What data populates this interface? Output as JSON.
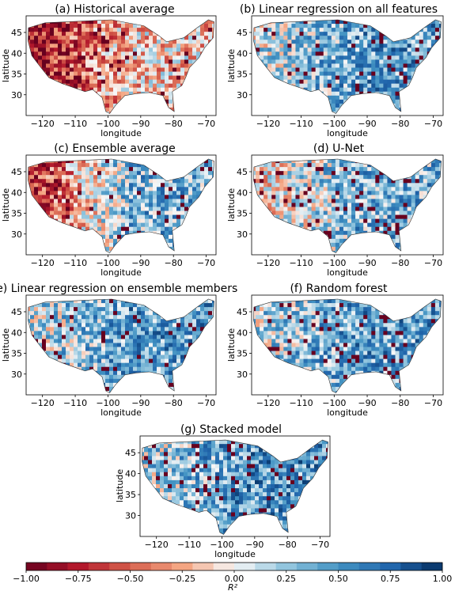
{
  "figure": {
    "colorbar": {
      "label": "R²",
      "ticks": [
        "−1.00",
        "−0.75",
        "−0.50",
        "−0.25",
        "0.00",
        "0.25",
        "0.50",
        "0.75",
        "1.00"
      ],
      "range": [
        -1,
        1
      ],
      "colormap": "RdBu",
      "negative_color": "#67001f",
      "neutral_color": "#f7f7f7",
      "positive_color": "#053061"
    }
  },
  "chart_data": [
    {
      "type": "heatmap",
      "title": "(a) Historical average",
      "xlabel": "longitude",
      "ylabel": "latitude",
      "xticks": [
        "−120",
        "−110",
        "−100",
        "−90",
        "−80",
        "−70"
      ],
      "yticks": [
        "30",
        "35",
        "40",
        "45"
      ],
      "xlim": [
        -125,
        -67
      ],
      "ylim": [
        25,
        49
      ],
      "mean_r2_west": -0.85,
      "mean_r2_east": -0.15
    },
    {
      "type": "heatmap",
      "title": "(b) Linear regression on all features",
      "xlabel": "longitude",
      "ylabel": "latitude",
      "xticks": [
        "−120",
        "−110",
        "−100",
        "−90",
        "−80",
        "−70"
      ],
      "yticks": [
        "30",
        "35",
        "40",
        "45"
      ],
      "xlim": [
        -125,
        -67
      ],
      "ylim": [
        25,
        49
      ],
      "mean_r2_west": 0.05,
      "mean_r2_east": 0.45
    },
    {
      "type": "heatmap",
      "title": "(c) Ensemble average",
      "xlabel": "longitude",
      "ylabel": "latitude",
      "xticks": [
        "−120",
        "−110",
        "−100",
        "−90",
        "−80",
        "−70"
      ],
      "yticks": [
        "30",
        "35",
        "40",
        "45"
      ],
      "xlim": [
        -125,
        -67
      ],
      "ylim": [
        25,
        49
      ],
      "mean_r2_west": -0.75,
      "mean_r2_east": 0.35
    },
    {
      "type": "heatmap",
      "title": "(d) U-Net",
      "xlabel": "longitude",
      "ylabel": "latitude",
      "xticks": [
        "−120",
        "−110",
        "−100",
        "−90",
        "−80",
        "−70"
      ],
      "yticks": [
        "30",
        "35",
        "40",
        "45"
      ],
      "xlim": [
        -125,
        -67
      ],
      "ylim": [
        25,
        49
      ],
      "mean_r2_west": -0.15,
      "mean_r2_east": 0.35
    },
    {
      "type": "heatmap",
      "title": "(e) Linear regression on ensemble members",
      "xlabel": "longitude",
      "ylabel": "latitude",
      "xticks": [
        "−120",
        "−110",
        "−100",
        "−90",
        "−80",
        "−70"
      ],
      "yticks": [
        "30",
        "35",
        "40",
        "45"
      ],
      "xlim": [
        -125,
        -67
      ],
      "ylim": [
        25,
        49
      ],
      "mean_r2_west": 0.1,
      "mean_r2_east": 0.45
    },
    {
      "type": "heatmap",
      "title": "(f) Random forest",
      "xlabel": "longitude",
      "ylabel": "latitude",
      "xticks": [
        "−120",
        "−110",
        "−100",
        "−90",
        "−80",
        "−70"
      ],
      "yticks": [
        "30",
        "35",
        "40",
        "45"
      ],
      "xlim": [
        -125,
        -67
      ],
      "ylim": [
        25,
        49
      ],
      "mean_r2_west": 0.15,
      "mean_r2_east": 0.45
    },
    {
      "type": "heatmap",
      "title": "(g) Stacked model",
      "xlabel": "longitude",
      "ylabel": "latitude",
      "xticks": [
        "−120",
        "−110",
        "−100",
        "−90",
        "−80",
        "−70"
      ],
      "yticks": [
        "30",
        "35",
        "40",
        "45"
      ],
      "xlim": [
        -125,
        -67
      ],
      "ylim": [
        25,
        49
      ],
      "mean_r2_west": 0.15,
      "mean_r2_east": 0.5
    }
  ]
}
